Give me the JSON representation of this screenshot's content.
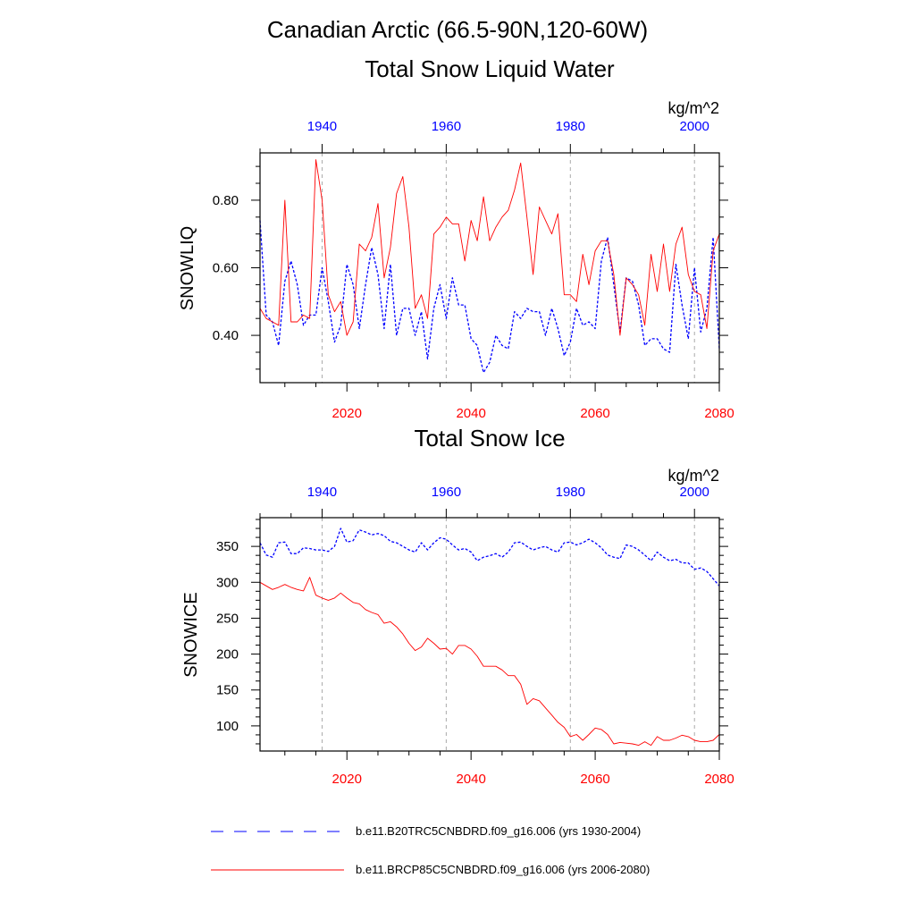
{
  "figure": {
    "title": "Canadian Arctic (66.5-90N,120-60W)",
    "colors": {
      "historical": "#0000ff",
      "future": "#ff0000",
      "grid": "#aaaaaa",
      "axis": "#000000"
    }
  },
  "legend": [
    {
      "label": "b.e11.B20TRC5CNBDRD.f09_g16.006 (yrs 1930-2004)",
      "color": "#0000ff",
      "style": "dashed"
    },
    {
      "label": "b.e11.BRCP85C5CNBDRD.f09_g16.006 (yrs 2006-2080)",
      "color": "#ff0000",
      "style": "solid"
    }
  ],
  "chart_data": [
    {
      "type": "line",
      "title": "Total Snow Liquid Water",
      "units": "kg/m^2",
      "ylabel": "SNOWLIQ",
      "ylim": [
        0.26,
        0.94
      ],
      "yticks": [
        0.4,
        0.6,
        0.8
      ],
      "ytick_labels": [
        "0.40",
        "0.60",
        "0.80"
      ],
      "bottom_xaxis": {
        "range": [
          2006,
          2080
        ],
        "ticks": [
          2020,
          2040,
          2060,
          2080
        ],
        "color": "#ff0000"
      },
      "top_xaxis": {
        "range": [
          1930,
          2004
        ],
        "ticks": [
          1940,
          1960,
          1980,
          2000
        ],
        "color": "#0000ff"
      },
      "grid": "vertical dashed at major ticks",
      "series": [
        {
          "name": "b.e11.B20TRC5CNBDRD.f09_g16.006 (yrs 1930-2004)",
          "color": "#0000ff",
          "style": "dashed",
          "x": [
            1930,
            1931,
            1932,
            1933,
            1934,
            1935,
            1936,
            1937,
            1938,
            1939,
            1940,
            1941,
            1942,
            1943,
            1944,
            1945,
            1946,
            1947,
            1948,
            1949,
            1950,
            1951,
            1952,
            1953,
            1954,
            1955,
            1956,
            1957,
            1958,
            1959,
            1960,
            1961,
            1962,
            1963,
            1964,
            1965,
            1966,
            1967,
            1968,
            1969,
            1970,
            1971,
            1972,
            1973,
            1974,
            1975,
            1976,
            1977,
            1978,
            1979,
            1980,
            1981,
            1982,
            1983,
            1984,
            1985,
            1986,
            1987,
            1988,
            1989,
            1990,
            1991,
            1992,
            1993,
            1994,
            1995,
            1996,
            1997,
            1998,
            1999,
            2000,
            2001,
            2002,
            2003,
            2004
          ],
          "values": [
            0.74,
            0.46,
            0.44,
            0.37,
            0.56,
            0.62,
            0.55,
            0.43,
            0.46,
            0.46,
            0.6,
            0.5,
            0.38,
            0.43,
            0.61,
            0.55,
            0.42,
            0.55,
            0.66,
            0.58,
            0.42,
            0.61,
            0.4,
            0.48,
            0.48,
            0.4,
            0.47,
            0.33,
            0.48,
            0.55,
            0.45,
            0.57,
            0.49,
            0.49,
            0.39,
            0.37,
            0.29,
            0.32,
            0.4,
            0.37,
            0.36,
            0.47,
            0.45,
            0.48,
            0.47,
            0.47,
            0.4,
            0.48,
            0.42,
            0.34,
            0.38,
            0.48,
            0.43,
            0.44,
            0.42,
            0.62,
            0.69,
            0.55,
            0.41,
            0.57,
            0.56,
            0.49,
            0.37,
            0.39,
            0.39,
            0.36,
            0.35,
            0.61,
            0.49,
            0.39,
            0.6,
            0.41,
            0.48,
            0.69,
            0.36
          ]
        },
        {
          "name": "b.e11.BRCP85C5CNBDRD.f09_g16.006 (yrs 2006-2080)",
          "color": "#ff0000",
          "style": "solid",
          "x": [
            2006,
            2007,
            2008,
            2009,
            2010,
            2011,
            2012,
            2013,
            2014,
            2015,
            2016,
            2017,
            2018,
            2019,
            2020,
            2021,
            2022,
            2023,
            2024,
            2025,
            2026,
            2027,
            2028,
            2029,
            2030,
            2031,
            2032,
            2033,
            2034,
            2035,
            2036,
            2037,
            2038,
            2039,
            2040,
            2041,
            2042,
            2043,
            2044,
            2045,
            2046,
            2047,
            2048,
            2049,
            2050,
            2051,
            2052,
            2053,
            2054,
            2055,
            2056,
            2057,
            2058,
            2059,
            2060,
            2061,
            2062,
            2063,
            2064,
            2065,
            2066,
            2067,
            2068,
            2069,
            2070,
            2071,
            2072,
            2073,
            2074,
            2075,
            2076,
            2077,
            2078,
            2079,
            2080
          ],
          "values": [
            0.48,
            0.45,
            0.44,
            0.43,
            0.8,
            0.44,
            0.44,
            0.46,
            0.45,
            0.92,
            0.8,
            0.52,
            0.47,
            0.5,
            0.4,
            0.44,
            0.67,
            0.65,
            0.69,
            0.79,
            0.57,
            0.66,
            0.82,
            0.87,
            0.72,
            0.48,
            0.52,
            0.45,
            0.7,
            0.72,
            0.75,
            0.73,
            0.73,
            0.62,
            0.74,
            0.68,
            0.81,
            0.68,
            0.72,
            0.75,
            0.77,
            0.83,
            0.91,
            0.75,
            0.58,
            0.78,
            0.74,
            0.7,
            0.76,
            0.52,
            0.52,
            0.5,
            0.64,
            0.55,
            0.65,
            0.68,
            0.68,
            0.58,
            0.4,
            0.57,
            0.55,
            0.52,
            0.43,
            0.64,
            0.53,
            0.67,
            0.53,
            0.67,
            0.72,
            0.58,
            0.53,
            0.52,
            0.42,
            0.65,
            0.7
          ]
        }
      ]
    },
    {
      "type": "line",
      "title": "Total Snow Ice",
      "units": "kg/m^2",
      "ylabel": "SNOWICE",
      "ylim": [
        65,
        390
      ],
      "yticks": [
        100,
        150,
        200,
        250,
        300,
        350
      ],
      "ytick_labels": [
        "100",
        "150",
        "200",
        "250",
        "300",
        "350"
      ],
      "bottom_xaxis": {
        "range": [
          2006,
          2080
        ],
        "ticks": [
          2020,
          2040,
          2060,
          2080
        ],
        "color": "#ff0000"
      },
      "top_xaxis": {
        "range": [
          1930,
          2004
        ],
        "ticks": [
          1940,
          1960,
          1980,
          2000
        ],
        "color": "#0000ff"
      },
      "grid": "vertical dashed at major ticks",
      "series": [
        {
          "name": "b.e11.B20TRC5CNBDRD.f09_g16.006 (yrs 1930-2004)",
          "color": "#0000ff",
          "style": "dashed",
          "x": [
            1930,
            1931,
            1932,
            1933,
            1934,
            1935,
            1936,
            1937,
            1938,
            1939,
            1940,
            1941,
            1942,
            1943,
            1944,
            1945,
            1946,
            1947,
            1948,
            1949,
            1950,
            1951,
            1952,
            1953,
            1954,
            1955,
            1956,
            1957,
            1958,
            1959,
            1960,
            1961,
            1962,
            1963,
            1964,
            1965,
            1966,
            1967,
            1968,
            1969,
            1970,
            1971,
            1972,
            1973,
            1974,
            1975,
            1976,
            1977,
            1978,
            1979,
            1980,
            1981,
            1982,
            1983,
            1984,
            1985,
            1986,
            1987,
            1988,
            1989,
            1990,
            1991,
            1992,
            1993,
            1994,
            1995,
            1996,
            1997,
            1998,
            1999,
            2000,
            2001,
            2002,
            2003,
            2004
          ],
          "values": [
            355,
            338,
            335,
            355,
            356,
            340,
            340,
            348,
            347,
            345,
            345,
            343,
            350,
            375,
            356,
            358,
            373,
            370,
            366,
            368,
            365,
            357,
            355,
            350,
            345,
            342,
            355,
            345,
            355,
            362,
            360,
            352,
            345,
            347,
            342,
            330,
            335,
            337,
            340,
            335,
            342,
            355,
            356,
            350,
            345,
            348,
            350,
            345,
            342,
            355,
            356,
            352,
            355,
            360,
            355,
            348,
            338,
            335,
            333,
            352,
            350,
            345,
            338,
            330,
            342,
            335,
            330,
            332,
            327,
            327,
            318,
            320,
            315,
            305,
            295
          ]
        },
        {
          "name": "b.e11.BRCP85C5CNBDRD.f09_g16.006 (yrs 2006-2080)",
          "color": "#ff0000",
          "style": "solid",
          "x": [
            2006,
            2007,
            2008,
            2009,
            2010,
            2011,
            2012,
            2013,
            2014,
            2015,
            2016,
            2017,
            2018,
            2019,
            2020,
            2021,
            2022,
            2023,
            2024,
            2025,
            2026,
            2027,
            2028,
            2029,
            2030,
            2031,
            2032,
            2033,
            2034,
            2035,
            2036,
            2037,
            2038,
            2039,
            2040,
            2041,
            2042,
            2043,
            2044,
            2045,
            2046,
            2047,
            2048,
            2049,
            2050,
            2051,
            2052,
            2053,
            2054,
            2055,
            2056,
            2057,
            2058,
            2059,
            2060,
            2061,
            2062,
            2063,
            2064,
            2065,
            2066,
            2067,
            2068,
            2069,
            2070,
            2071,
            2072,
            2073,
            2074,
            2075,
            2076,
            2077,
            2078,
            2079,
            2080
          ],
          "values": [
            300,
            295,
            290,
            293,
            297,
            293,
            290,
            288,
            307,
            282,
            278,
            275,
            278,
            285,
            278,
            272,
            270,
            262,
            258,
            255,
            243,
            245,
            238,
            228,
            215,
            205,
            210,
            222,
            215,
            207,
            208,
            200,
            212,
            212,
            207,
            197,
            183,
            183,
            183,
            178,
            170,
            170,
            158,
            130,
            138,
            135,
            125,
            115,
            105,
            98,
            85,
            88,
            80,
            88,
            97,
            95,
            88,
            75,
            77,
            76,
            75,
            73,
            78,
            73,
            85,
            80,
            80,
            83,
            87,
            85,
            80,
            78,
            78,
            80,
            88
          ]
        }
      ]
    }
  ]
}
